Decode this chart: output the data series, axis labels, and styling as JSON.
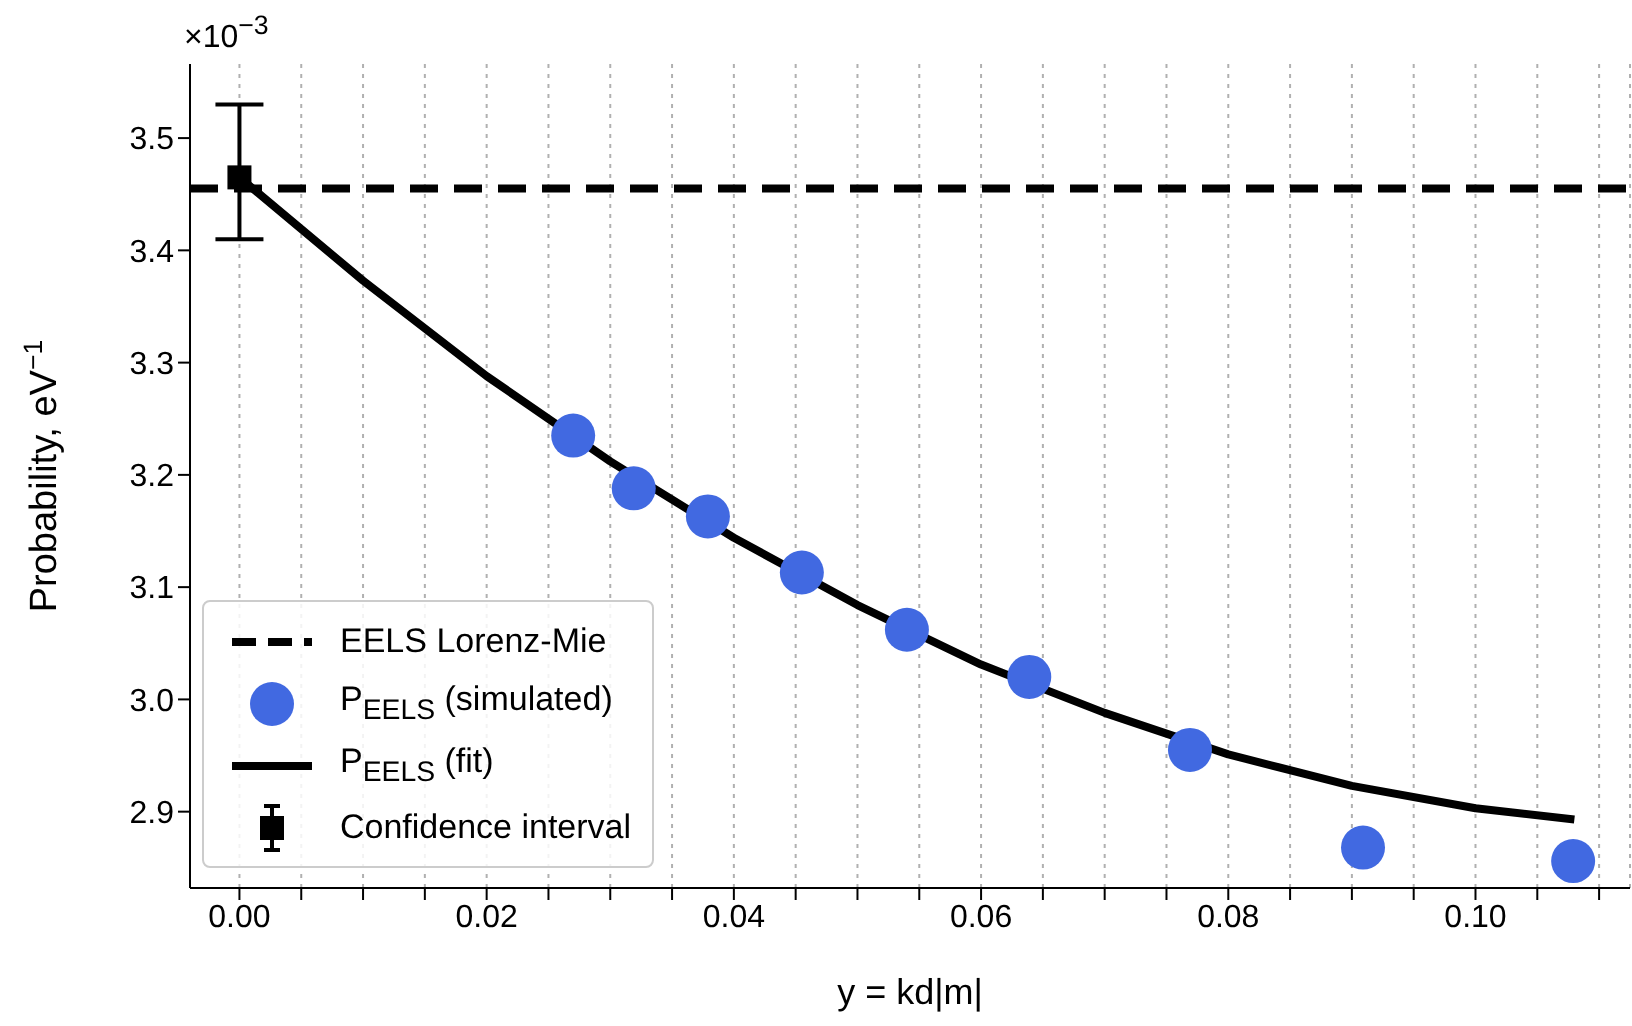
{
  "chart_data": {
    "type": "scatter",
    "xlabel": "y = kd|m|",
    "ylabel": "Probability, eV$^{−1}$",
    "annotations": [
      "×10$^{−3}$"
    ],
    "xlim": [
      -0.004,
      0.1125
    ],
    "ylim": [
      2.832,
      3.566
    ],
    "xticks": [
      {
        "value": 0,
        "label": "0.00"
      },
      {
        "value": 0.005,
        "label": null
      },
      {
        "value": 0.01,
        "label": null
      },
      {
        "value": 0.015,
        "label": null
      },
      {
        "value": 0.02,
        "label": "0.02"
      },
      {
        "value": 0.025,
        "label": null
      },
      {
        "value": 0.03,
        "label": null
      },
      {
        "value": 0.035,
        "label": null
      },
      {
        "value": 0.04,
        "label": "0.04"
      },
      {
        "value": 0.045,
        "label": null
      },
      {
        "value": 0.05,
        "label": null
      },
      {
        "value": 0.055,
        "label": null
      },
      {
        "value": 0.06,
        "label": "0.06"
      },
      {
        "value": 0.065,
        "label": null
      },
      {
        "value": 0.07,
        "label": null
      },
      {
        "value": 0.075,
        "label": null
      },
      {
        "value": 0.08,
        "label": "0.08"
      },
      {
        "value": 0.085,
        "label": null
      },
      {
        "value": 0.09,
        "label": null
      },
      {
        "value": 0.095,
        "label": null
      },
      {
        "value": 0.1,
        "label": "0.10"
      },
      {
        "value": 0.105,
        "label": null
      },
      {
        "value": 0.11,
        "label": null
      }
    ],
    "yticks": [
      {
        "value": 2.9,
        "label": "2.9"
      },
      {
        "value": 3.0,
        "label": "3.0"
      },
      {
        "value": 3.1,
        "label": "3.1"
      },
      {
        "value": 3.2,
        "label": "3.2"
      },
      {
        "value": 3.3,
        "label": "3.3"
      },
      {
        "value": 3.4,
        "label": "3.4"
      },
      {
        "value": 3.5,
        "label": "3.5"
      }
    ],
    "grid": "x",
    "legend": "bottom left",
    "ref_lines": [
      {
        "axis": "y",
        "value": 3.455,
        "label": "EELS Lorenz-Mie",
        "color": "#000000",
        "line_style": "dashed"
      }
    ],
    "series": [
      {
        "name": "P$_{EELS}$ (simulated)",
        "marker": "circle",
        "color": "#4169e1",
        "x": [
          0.027,
          0.0319,
          0.0379,
          0.0455,
          0.054,
          0.0639,
          0.0769,
          0.0909,
          0.1079
        ],
        "values": [
          3.235,
          3.188,
          3.163,
          3.113,
          3.062,
          3.02,
          2.955,
          2.868,
          2.856
        ]
      },
      {
        "name": "P$_{EELS}$ (fit)",
        "type": "line",
        "marker": "none",
        "line_style": "solid",
        "color": "#000000",
        "x": [
          0,
          0.01,
          0.02,
          0.03,
          0.04,
          0.05,
          0.06,
          0.07,
          0.08,
          0.09,
          0.1,
          0.108
        ],
        "values": [
          3.465,
          3.373,
          3.288,
          3.212,
          3.144,
          3.084,
          3.031,
          2.988,
          2.951,
          2.923,
          2.903,
          2.893
        ]
      },
      {
        "name": "Confidence interval",
        "marker": "square",
        "color": "#000000",
        "x": [
          0
        ],
        "values": [
          3.465
        ],
        "errors": [
          [
            3.41,
            3.53
          ]
        ]
      }
    ]
  }
}
